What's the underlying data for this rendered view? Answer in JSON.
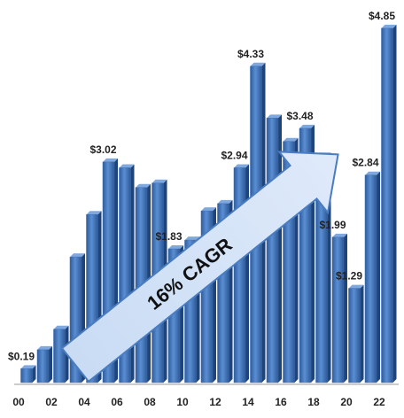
{
  "chart_data": {
    "type": "bar",
    "categories": [
      "00",
      null,
      "02",
      null,
      "04",
      null,
      "06",
      null,
      "08",
      null,
      "10",
      null,
      "12",
      null,
      "14",
      null,
      "16",
      null,
      "18",
      null,
      "20",
      null,
      "22"
    ],
    "values": [
      0.19,
      0.45,
      0.73,
      1.72,
      2.3,
      3.02,
      2.94,
      2.67,
      2.73,
      1.83,
      1.95,
      2.35,
      2.45,
      2.94,
      4.33,
      3.62,
      3.3,
      3.48,
      3.1,
      1.99,
      1.29,
      2.84,
      4.85
    ],
    "value_labels": [
      "$0.19",
      null,
      null,
      null,
      null,
      "$3.02",
      null,
      null,
      null,
      "$1.83",
      null,
      null,
      null,
      "$2.94",
      "$4.33",
      null,
      null,
      "$3.48",
      null,
      "$1.99",
      "$1.29",
      "$2.84",
      "$4.85"
    ],
    "ylim": [
      0,
      5
    ],
    "color": "#3a6db5",
    "annotation": "16% CAGR"
  }
}
